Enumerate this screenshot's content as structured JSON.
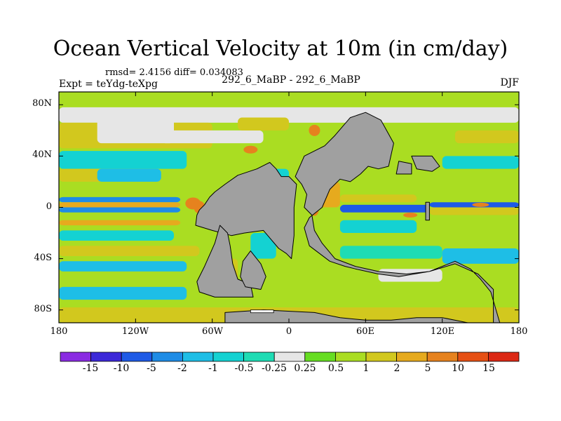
{
  "chart_data": {
    "type": "heatmap",
    "title": "Ocean Vertical Velocity at 10m (in cm/day)",
    "stats_text": "rmsd= 2.4156 diff= 0.034083",
    "subtitle": "292_6_MaBP - 292_6_MaBP",
    "left_label": "Expt = teYdg-teXpg",
    "right_label": "DJF",
    "units": "cm/day",
    "x_axis": {
      "range": [
        -180,
        180
      ],
      "ticks": [
        "180",
        "120W",
        "60W",
        "0",
        "60E",
        "120E",
        "180"
      ],
      "tick_values": [
        -180,
        -120,
        -60,
        0,
        60,
        120,
        180
      ]
    },
    "y_axis": {
      "range": [
        -90,
        90
      ],
      "ticks": [
        "80N",
        "40N",
        "0",
        "40S",
        "80S"
      ],
      "tick_values": [
        80,
        40,
        0,
        -40,
        -80
      ]
    },
    "colorbar": {
      "levels": [
        "-15",
        "-10",
        "-5",
        "-2",
        "-1",
        "-0.5",
        "-0.25",
        "0.25",
        "0.5",
        "1",
        "2",
        "5",
        "10",
        "15"
      ],
      "colors": [
        "#8a2be2",
        "#3c28d8",
        "#1e5ae6",
        "#1e8ce6",
        "#1ebee6",
        "#14d2d2",
        "#1edcb4",
        "#e6e6e6",
        "#66dd22",
        "#aadd22",
        "#d2c81e",
        "#e6aa1e",
        "#e6821e",
        "#e65014",
        "#dc2814"
      ]
    },
    "land_color": "#a0a0a0"
  }
}
